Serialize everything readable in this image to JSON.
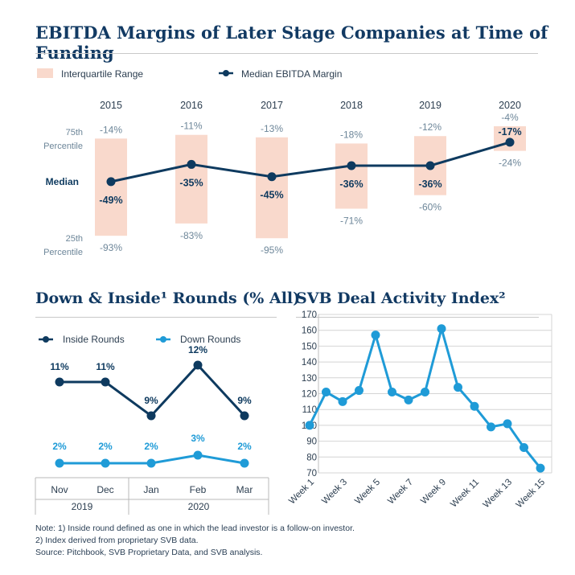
{
  "titles": {
    "main": "EBITDA Margins of Later Stage Companies at Time of Funding",
    "down": "Down & Inside¹ Rounds (% All)",
    "svb": "SVB Deal Activity Index²"
  },
  "colors": {
    "navy": "#0e3a5f",
    "peach": "#f9d9cc",
    "blue": "#1f9bd7",
    "gray": "#6d8699"
  },
  "chart_data": [
    {
      "type": "line",
      "title": "EBITDA Margins of Later Stage Companies at Time of Funding",
      "legend": [
        "Interquartile Range",
        "Median EBITDA Margin"
      ],
      "row_labels": {
        "p75_top": "75th",
        "p75_bottom": "Percentile",
        "median": "Median",
        "p25_top": "25th",
        "p25_bottom": "Percentile"
      },
      "categories": [
        "2015",
        "2016",
        "2017",
        "2018",
        "2019",
        "2020"
      ],
      "p75": [
        -14,
        -11,
        -13,
        -18,
        -12,
        -4
      ],
      "median": [
        -49,
        -35,
        -45,
        -36,
        -36,
        -17
      ],
      "p25": [
        -93,
        -83,
        -95,
        -71,
        -60,
        -24
      ],
      "p75_labels": [
        "-14%",
        "-11%",
        "-13%",
        "-18%",
        "-12%",
        "-4%"
      ],
      "median_labels": [
        "-49%",
        "-35%",
        "-45%",
        "-36%",
        "-36%",
        "-17%"
      ],
      "p25_labels": [
        "-93%",
        "-83%",
        "-95%",
        "-71%",
        "-60%",
        "-24%"
      ]
    },
    {
      "type": "line",
      "title": "Down & Inside¹ Rounds (% All)",
      "categories": [
        "Nov",
        "Dec",
        "Jan",
        "Feb",
        "Mar"
      ],
      "year_groups": [
        "2019",
        "2020"
      ],
      "series": [
        {
          "name": "Inside Rounds",
          "values": [
            11,
            11,
            9,
            12,
            9
          ],
          "labels": [
            "11%",
            "11%",
            "9%",
            "12%",
            "9%"
          ]
        },
        {
          "name": "Down Rounds",
          "values": [
            2,
            2,
            2,
            3,
            2
          ],
          "labels": [
            "2%",
            "2%",
            "2%",
            "3%",
            "2%"
          ]
        }
      ]
    },
    {
      "type": "line",
      "title": "SVB Deal Activity Index²",
      "x": [
        1,
        2,
        3,
        4,
        5,
        6,
        7,
        8,
        9,
        10,
        11,
        12,
        13,
        14,
        15
      ],
      "values": [
        100,
        121,
        115,
        122,
        157,
        121,
        116,
        121,
        161,
        124,
        112,
        99,
        101,
        86,
        73
      ],
      "tick_labels": [
        "Week 1",
        "Week 3",
        "Week 5",
        "Week 7",
        "Week 9",
        "Week 11",
        "Week 13",
        "Week 15"
      ],
      "yticks": [
        "70",
        "80",
        "90",
        "100",
        "110",
        "120",
        "130",
        "140",
        "150",
        "160",
        "170"
      ],
      "ylim": [
        70,
        170
      ]
    }
  ],
  "notes": [
    "Note: 1) Inside round defined as one in which the lead investor is a follow-on investor.",
    "2) Index derived from proprietary SVB data.",
    "Source: Pitchbook, SVB Proprietary Data, and SVB analysis."
  ]
}
